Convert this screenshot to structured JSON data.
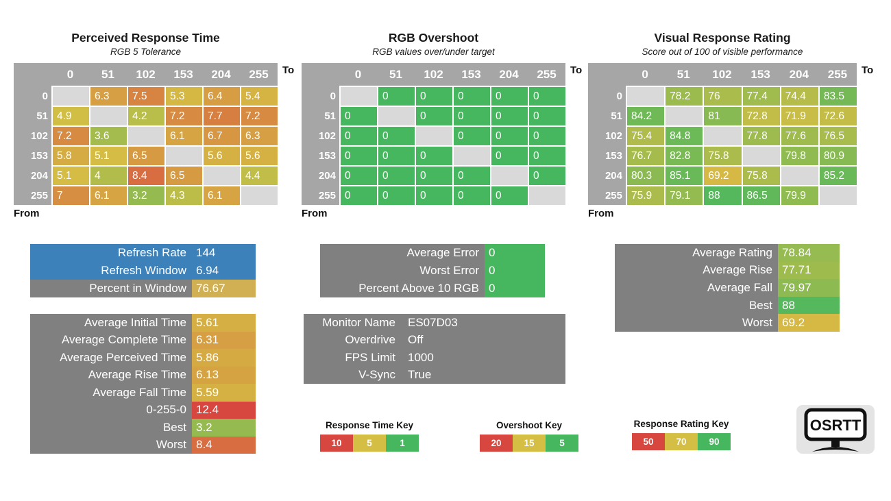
{
  "axis_labels": {
    "to": "To",
    "from": "From"
  },
  "grid_levels": [
    "0",
    "51",
    "102",
    "153",
    "204",
    "255"
  ],
  "colors": {
    "green": "#47b75f",
    "yellow": "#d5be44",
    "red": "#d8473f",
    "blue": "#3d81ba",
    "panel_gray": "#808080",
    "header_gray": "#a6a6a6",
    "diagonal_gray": "#d9d9d9",
    "percent_gold": "#d1b053",
    "logo_bg": "#e4e4e4"
  },
  "scales": {
    "time": {
      "stops": [
        [
          1,
          "green"
        ],
        [
          5,
          "yellow"
        ],
        [
          10,
          "red"
        ]
      ]
    },
    "overshoot": {
      "stops": [
        [
          5,
          "green"
        ],
        [
          15,
          "yellow"
        ],
        [
          20,
          "red"
        ]
      ]
    },
    "rating": {
      "stops": [
        [
          50,
          "red"
        ],
        [
          70,
          "yellow"
        ],
        [
          90,
          "green"
        ]
      ]
    }
  },
  "chart_data": [
    {
      "type": "heatmap",
      "title": "Perceived Response Time",
      "subtitle": "RGB 5 Tolerance",
      "x_categories": [
        "0",
        "51",
        "102",
        "153",
        "204",
        "255"
      ],
      "y_categories": [
        "0",
        "51",
        "102",
        "153",
        "204",
        "255"
      ],
      "values_note": "rows = From, columns = To, null = diagonal (no transition)"
    },
    {
      "type": "heatmap",
      "title": "RGB Overshoot",
      "subtitle": "RGB values over/under target"
    },
    {
      "type": "heatmap",
      "title": "Visual Response Rating",
      "subtitle": "Score out of 100 of visible performance"
    }
  ],
  "heatmaps": [
    {
      "id": "perceived",
      "title": "Perceived Response Time",
      "subtitle": "RGB 5 Tolerance",
      "scale": "time",
      "rows": [
        [
          null,
          6.3,
          7.5,
          5.3,
          6.4,
          5.4
        ],
        [
          4.9,
          null,
          4.2,
          7.2,
          7.7,
          7.2
        ],
        [
          7.2,
          3.6,
          null,
          6.1,
          6.7,
          6.3
        ],
        [
          5.8,
          5.1,
          6.5,
          null,
          5.6,
          5.6
        ],
        [
          5.1,
          4,
          8.4,
          6.5,
          null,
          4.4
        ],
        [
          7,
          6.1,
          3.2,
          4.3,
          6.1,
          null
        ]
      ]
    },
    {
      "id": "overshoot",
      "title": "RGB Overshoot",
      "subtitle": "RGB values over/under target",
      "scale": "overshoot",
      "rows": [
        [
          null,
          0,
          0,
          0,
          0,
          0
        ],
        [
          0,
          null,
          0,
          0,
          0,
          0
        ],
        [
          0,
          0,
          null,
          0,
          0,
          0
        ],
        [
          0,
          0,
          0,
          null,
          0,
          0
        ],
        [
          0,
          0,
          0,
          0,
          null,
          0
        ],
        [
          0,
          0,
          0,
          0,
          0,
          null
        ]
      ]
    },
    {
      "id": "rating",
      "title": "Visual Response Rating",
      "subtitle": "Score out of 100 of visible performance",
      "scale": "rating",
      "rows": [
        [
          null,
          78.2,
          76,
          77.4,
          74.4,
          83.5
        ],
        [
          84.2,
          null,
          81,
          72.8,
          71.9,
          72.6
        ],
        [
          75.4,
          84.8,
          null,
          77.8,
          77.6,
          76.5
        ],
        [
          76.7,
          82.8,
          75.8,
          null,
          79.8,
          80.9
        ],
        [
          80.3,
          85.1,
          69.2,
          75.8,
          null,
          85.2
        ],
        [
          75.9,
          79.1,
          88,
          86.5,
          79.9,
          null
        ]
      ]
    }
  ],
  "panels": [
    {
      "id": "refresh",
      "rows": [
        {
          "label": "Refresh Rate",
          "value": "144",
          "style": "blue"
        },
        {
          "label": "Refresh Window",
          "value": "6.94",
          "style": "blue"
        },
        {
          "label": "Percent in Window",
          "value": "76.67",
          "style": "gray",
          "value_color": "percent_gold"
        }
      ]
    },
    {
      "id": "averages",
      "rows": [
        {
          "label": "Average Initial Time",
          "value": "5.61",
          "style": "gray",
          "scale": "time"
        },
        {
          "label": "Average Complete Time",
          "value": "6.31",
          "style": "gray",
          "scale": "time"
        },
        {
          "label": "Average Perceived Time",
          "value": "5.86",
          "style": "gray",
          "scale": "time"
        },
        {
          "label": "Average Rise Time",
          "value": "6.13",
          "style": "gray",
          "scale": "time"
        },
        {
          "label": "Average Fall Time",
          "value": "5.59",
          "style": "gray",
          "scale": "time"
        },
        {
          "label": "0-255-0",
          "value": "12.4",
          "style": "gray",
          "scale": "time"
        },
        {
          "label": "Best",
          "value": "3.2",
          "style": "gray",
          "scale": "time"
        },
        {
          "label": "Worst",
          "value": "8.4",
          "style": "gray",
          "scale": "time"
        }
      ]
    },
    {
      "id": "error",
      "rows": [
        {
          "label": "Average Error",
          "value": "0",
          "style": "gray",
          "scale": "overshoot"
        },
        {
          "label": "Worst Error",
          "value": "0",
          "style": "gray",
          "scale": "overshoot"
        },
        {
          "label": "Percent Above 10 RGB",
          "value": "0",
          "style": "gray",
          "scale": "overshoot"
        }
      ]
    },
    {
      "id": "monitor",
      "rows": [
        {
          "label": "Monitor Name",
          "value": "ES07D03",
          "style": "plain"
        },
        {
          "label": "Overdrive",
          "value": "Off",
          "style": "plain"
        },
        {
          "label": "FPS Limit",
          "value": "1000",
          "style": "plain"
        },
        {
          "label": "V-Sync",
          "value": "True",
          "style": "plain"
        }
      ]
    },
    {
      "id": "rating_summary",
      "rows": [
        {
          "label": "Average Rating",
          "value": "78.84",
          "style": "gray",
          "scale": "rating"
        },
        {
          "label": "Average Rise",
          "value": "77.71",
          "style": "gray",
          "scale": "rating"
        },
        {
          "label": "Average Fall",
          "value": "79.97",
          "style": "gray",
          "scale": "rating"
        },
        {
          "label": "Best",
          "value": "88",
          "style": "gray",
          "scale": "rating"
        },
        {
          "label": "Worst",
          "value": "69.2",
          "style": "gray",
          "scale": "rating"
        }
      ]
    }
  ],
  "keys": [
    {
      "id": "time",
      "title": "Response Time Key",
      "cells": [
        {
          "label": "10",
          "color": "red"
        },
        {
          "label": "5",
          "color": "yellow"
        },
        {
          "label": "1",
          "color": "green"
        }
      ]
    },
    {
      "id": "overshoot",
      "title": "Overshoot Key",
      "cells": [
        {
          "label": "20",
          "color": "red"
        },
        {
          "label": "15",
          "color": "yellow"
        },
        {
          "label": "5",
          "color": "green"
        }
      ]
    },
    {
      "id": "rating",
      "title": "Response Rating Key",
      "cells": [
        {
          "label": "50",
          "color": "red"
        },
        {
          "label": "70",
          "color": "yellow"
        },
        {
          "label": "90",
          "color": "green"
        }
      ]
    }
  ],
  "logo": {
    "text": "OSRTT"
  }
}
